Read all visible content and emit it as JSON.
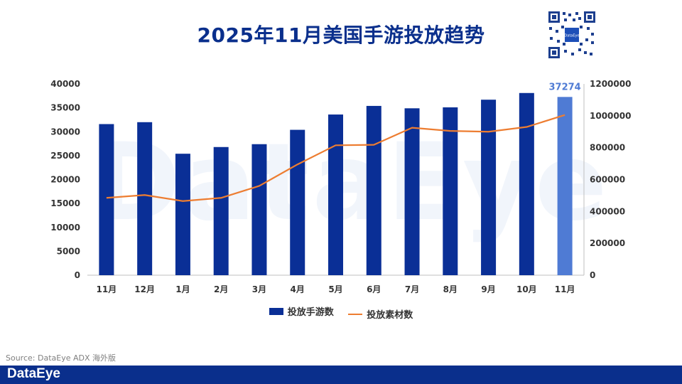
{
  "page": {
    "title": "2025年11月美国手游投放趋势",
    "source": "Source: DataEye ADX 海外版",
    "brand": "DataEye",
    "watermark": "DataEye",
    "qr_label": "DataEye"
  },
  "colors": {
    "bar": "#0a2f96",
    "bar_highlight": "#4f7bd4",
    "line": "#ed7d31",
    "title": "#0a2f8c",
    "footer": "#0a2f8c"
  },
  "chart_data": {
    "type": "bar",
    "categories": [
      "11月",
      "12月",
      "1月",
      "2月",
      "3月",
      "4月",
      "5月",
      "6月",
      "7月",
      "8月",
      "9月",
      "10月",
      "11月"
    ],
    "series": [
      {
        "name": "投放手游数",
        "type": "bar",
        "axis": "left",
        "values": [
          31600,
          32000,
          25400,
          26800,
          27400,
          30400,
          33600,
          35400,
          34900,
          35100,
          36700,
          38100,
          37274
        ]
      },
      {
        "name": "投放素材数",
        "type": "line",
        "axis": "right",
        "values": [
          485000,
          503000,
          465000,
          485000,
          560000,
          695000,
          815000,
          818000,
          925000,
          905000,
          900000,
          930000,
          1005000
        ]
      }
    ],
    "highlight_label": "37274",
    "ylim": [
      0,
      40000
    ],
    "y_ticks": [
      "0",
      "5000",
      "10000",
      "15000",
      "20000",
      "25000",
      "30000",
      "35000",
      "40000"
    ],
    "y2lim": [
      0,
      1200000
    ],
    "y2_ticks": [
      "0",
      "200000",
      "400000",
      "600000",
      "800000",
      "1000000",
      "1200000"
    ],
    "legend": "bottom",
    "grid": false
  }
}
